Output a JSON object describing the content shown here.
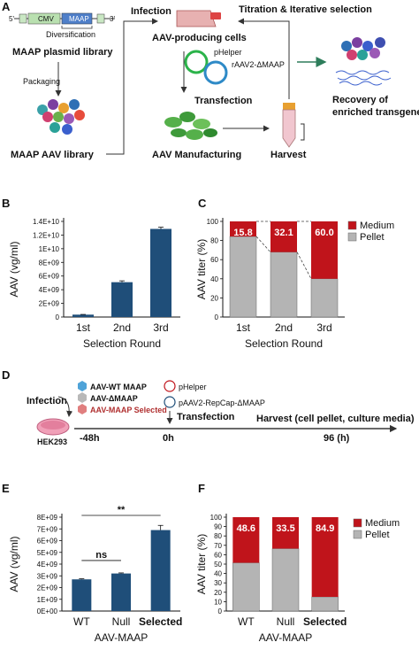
{
  "panels": {
    "a": "A",
    "b": "B",
    "c": "C",
    "d": "D",
    "e": "E",
    "f": "F"
  },
  "panel_a": {
    "plasmid_cmv": "CMV",
    "plasmid_maap": "MAAP",
    "plasmid_left_end": "5'",
    "plasmid_right_end": "3'",
    "diversification": "Diversification",
    "plasmid_library": "MAAP plasmid library",
    "packaging": "Packaging",
    "aav_library": "MAAP AAV library",
    "infection": "Infection",
    "producing_cells": "AAV-producing cells",
    "phelper": "pHelper",
    "raav2": "rAAV2-ΔMAAP",
    "transfection": "Transfection",
    "manufacturing": "AAV Manufacturing",
    "harvest": "Harvest",
    "titration": "Titration & Iterative selection",
    "recovery_line1": "Recovery of",
    "recovery_line2": "enriched transgene"
  },
  "panel_d": {
    "infection": "Infection",
    "legend": [
      "AAV-WT MAAP",
      "AAV-ΔMAAP",
      "AAV-MAAP Selected"
    ],
    "legend_colors": [
      "#4fa3d8",
      "#b8b8b8",
      "#e07f7f"
    ],
    "cells": "HEK293",
    "phelper": "pHelper",
    "repcap": "pAAV2-RepCap-ΔMAAP",
    "transfection": "Transfection",
    "t_minus48": "-48h",
    "t_zero": "0h",
    "harvest": "Harvest (cell pellet, culture media)",
    "t_96": "96 (h)"
  },
  "chart_data": [
    {
      "id": "B",
      "type": "bar",
      "categories": [
        "1st",
        "2nd",
        "3rd"
      ],
      "values": [
        350000000.0,
        5100000000.0,
        12900000000.0
      ],
      "errors": [
        30000000.0,
        200000000.0,
        250000000.0
      ],
      "ylim": [
        0,
        14000000000.0
      ],
      "yticks": [
        0,
        2000000000.0,
        4000000000.0,
        6000000000.0,
        8000000000.0,
        10000000000.0,
        12000000000.0,
        14000000000.0
      ],
      "ytick_labels": [
        "0",
        "2E+09",
        "4E+09",
        "6E+09",
        "8E+09",
        "1E+10",
        "1.2E+10",
        "1.4E+10"
      ],
      "xlabel": "Selection Round",
      "ylabel": "AAV (vg/ml)",
      "color": "#1f4e79"
    },
    {
      "id": "C",
      "type": "bar",
      "stacked": true,
      "categories": [
        "1st",
        "2nd",
        "3rd"
      ],
      "series": [
        {
          "name": "Medium",
          "values": [
            15.8,
            32.1,
            60.0
          ],
          "color": "#c0141b"
        },
        {
          "name": "Pellet",
          "values": [
            84.2,
            67.9,
            40.0
          ],
          "color": "#b4b4b4"
        }
      ],
      "data_labels": [
        "15.8",
        "32.1",
        "60.0"
      ],
      "ylim": [
        0,
        100
      ],
      "yticks": [
        0,
        20,
        40,
        60,
        80,
        100
      ],
      "ytick_labels": [
        "0",
        "20",
        "40",
        "60",
        "80",
        "100"
      ],
      "xlabel": "Selection Round",
      "ylabel": "AAV titer (%)",
      "legend": "top-right"
    },
    {
      "id": "E",
      "type": "bar",
      "categories": [
        "WT",
        "Null",
        "Selected"
      ],
      "values": [
        2700000000.0,
        3200000000.0,
        6900000000.0
      ],
      "errors": [
        50000000.0,
        50000000.0,
        400000000.0
      ],
      "ylim": [
        0,
        8000000000.0
      ],
      "yticks": [
        0,
        1000000000.0,
        2000000000.0,
        3000000000.0,
        4000000000.0,
        5000000000.0,
        6000000000.0,
        7000000000.0,
        8000000000.0
      ],
      "ytick_labels": [
        "0E+00",
        "1E+09",
        "2E+09",
        "3E+09",
        "4E+09",
        "5E+09",
        "6E+09",
        "7E+09",
        "8E+09"
      ],
      "xlabel": "AAV-MAAP",
      "ylabel": "AAV (vg/ml)",
      "color": "#1f4e79",
      "significance": [
        {
          "from": 0,
          "to": 2,
          "label": "**"
        },
        {
          "from": 0,
          "to": 1,
          "label": "ns"
        }
      ]
    },
    {
      "id": "F",
      "type": "bar",
      "stacked": true,
      "categories": [
        "WT",
        "Null",
        "Selected"
      ],
      "series": [
        {
          "name": "Medium",
          "values": [
            48.6,
            33.5,
            84.9
          ],
          "color": "#c0141b"
        },
        {
          "name": "Pellet",
          "values": [
            51.4,
            66.5,
            15.1
          ],
          "color": "#b4b4b4"
        }
      ],
      "data_labels": [
        "48.6",
        "33.5",
        "84.9"
      ],
      "ylim": [
        0,
        100
      ],
      "yticks": [
        0,
        10,
        20,
        30,
        40,
        50,
        60,
        70,
        80,
        90,
        100
      ],
      "ytick_labels": [
        "0",
        "10",
        "20",
        "30",
        "40",
        "50",
        "60",
        "70",
        "80",
        "90",
        "100"
      ],
      "xlabel": "AAV-MAAP",
      "ylabel": "AAV titer (%)",
      "legend": "top-right"
    }
  ]
}
